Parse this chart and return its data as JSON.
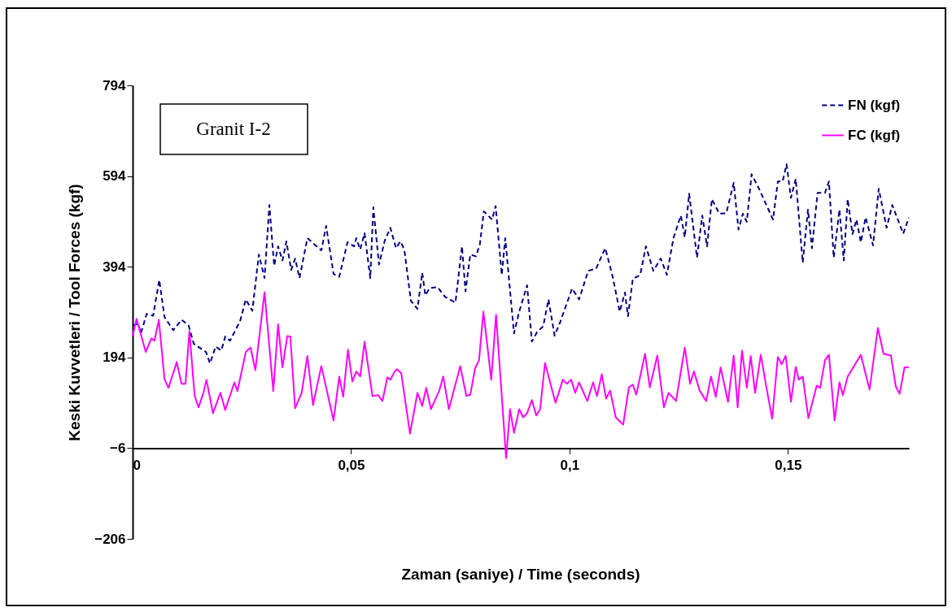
{
  "chart_data": {
    "type": "line",
    "xlabel": "Zaman (saniye) / Time (seconds)",
    "ylabel": "Keski Kuvvetleri  / Tool Forces (kgf)",
    "annotations": [
      "Granit I-2"
    ],
    "xlim": [
      0,
      0.1777
    ],
    "xticks": [
      {
        "value": 0,
        "label": "0"
      },
      {
        "value": 0.05,
        "label": "0,05"
      },
      {
        "value": 0.1,
        "label": "0,1"
      },
      {
        "value": 0.15,
        "label": "0,15"
      }
    ],
    "ylim": [
      -206,
      794
    ],
    "yticks": [
      -206,
      -6,
      194,
      394,
      594,
      794
    ],
    "grid": false,
    "legend": "top right",
    "marker": "none",
    "series": [
      {
        "name": "FN (kgf)",
        "color": "#000080",
        "line_style": "dashed",
        "x": [
          0,
          0.0013,
          0.0019,
          0.0032,
          0.0047,
          0.0061,
          0.0073,
          0.0093,
          0.0112,
          0.0128,
          0.014,
          0.0168,
          0.0177,
          0.019,
          0.0203,
          0.0212,
          0.0223,
          0.0246,
          0.0259,
          0.0274,
          0.0289,
          0.0302,
          0.0313,
          0.0324,
          0.0333,
          0.0343,
          0.0352,
          0.0363,
          0.0372,
          0.0382,
          0.04,
          0.0432,
          0.0443,
          0.046,
          0.0473,
          0.0492,
          0.0507,
          0.0512,
          0.0521,
          0.0531,
          0.0544,
          0.0551,
          0.0564,
          0.0577,
          0.059,
          0.0603,
          0.0613,
          0.0622,
          0.0637,
          0.0652,
          0.0663,
          0.067,
          0.068,
          0.0698,
          0.0715,
          0.0739,
          0.0754,
          0.0762,
          0.0773,
          0.0786,
          0.0795,
          0.0804,
          0.0823,
          0.0831,
          0.0845,
          0.0853,
          0.0873,
          0.0885,
          0.0903,
          0.0914,
          0.0926,
          0.094,
          0.0952,
          0.0966,
          0.0978,
          0.1006,
          0.1022,
          0.1043,
          0.1061,
          0.1082,
          0.1099,
          0.1115,
          0.1127,
          0.1134,
          0.1145,
          0.1162,
          0.1175,
          0.1192,
          0.1209,
          0.1223,
          0.1238,
          0.1255,
          0.1264,
          0.1274,
          0.1292,
          0.1304,
          0.1315,
          0.1326,
          0.1343,
          0.1359,
          0.1376,
          0.1387,
          0.1397,
          0.1406,
          0.1417,
          0.1434,
          0.1449,
          0.1466,
          0.1477,
          0.1488,
          0.1497,
          0.1507,
          0.1518,
          0.1534,
          0.1546,
          0.1555,
          0.1568,
          0.1585,
          0.1594,
          0.1605,
          0.1618,
          0.1628,
          0.1637,
          0.1648,
          0.1657,
          0.1667,
          0.1678,
          0.1695,
          0.1708,
          0.1726,
          0.1739,
          0.1764,
          0.1777
        ],
        "values": [
          265,
          268,
          247,
          290,
          286,
          365,
          283,
          254,
          277,
          265,
          224,
          206,
          181,
          218,
          209,
          240,
          231,
          274,
          322,
          297,
          421,
          369,
          530,
          396,
          439,
          408,
          450,
          387,
          412,
          369,
          457,
          430,
          484,
          378,
          372,
          448,
          439,
          457,
          432,
          468,
          369,
          525,
          399,
          451,
          480,
          435,
          450,
          432,
          319,
          301,
          381,
          331,
          347,
          349,
          328,
          315,
          439,
          340,
          421,
          417,
          444,
          516,
          498,
          528,
          376,
          457,
          247,
          295,
          353,
          229,
          250,
          263,
          322,
          242,
          270,
          346,
          322,
          385,
          390,
          435,
          372,
          295,
          337,
          285,
          367,
          376,
          439,
          385,
          412,
          376,
          457,
          507,
          459,
          555,
          414,
          507,
          439,
          543,
          511,
          512,
          579,
          476,
          511,
          493,
          598,
          566,
          534,
          498,
          582,
          582,
          620,
          546,
          588,
          403,
          520,
          435,
          557,
          557,
          582,
          414,
          520,
          408,
          543,
          466,
          498,
          448,
          503,
          441,
          566,
          480,
          530,
          467,
          502
        ]
      },
      {
        "name": "FC (kgf)",
        "color": "#ff00ff",
        "line_style": "solid",
        "x": [
          0,
          0.0009,
          0.003,
          0.0043,
          0.005,
          0.006,
          0.0073,
          0.0082,
          0.0101,
          0.0112,
          0.0121,
          0.013,
          0.0142,
          0.0151,
          0.0162,
          0.0169,
          0.0184,
          0.0201,
          0.0212,
          0.0233,
          0.024,
          0.0259,
          0.027,
          0.0281,
          0.0302,
          0.0322,
          0.0333,
          0.0343,
          0.0354,
          0.0361,
          0.0372,
          0.0387,
          0.04,
          0.0413,
          0.0432,
          0.046,
          0.0473,
          0.0482,
          0.0493,
          0.0503,
          0.0512,
          0.0521,
          0.0531,
          0.0549,
          0.0562,
          0.0572,
          0.0583,
          0.059,
          0.06,
          0.0605,
          0.0615,
          0.0635,
          0.0652,
          0.0663,
          0.0672,
          0.0683,
          0.0702,
          0.0711,
          0.0724,
          0.075,
          0.0764,
          0.0773,
          0.0784,
          0.0793,
          0.0803,
          0.0821,
          0.0832,
          0.0855,
          0.0864,
          0.0873,
          0.0885,
          0.0894,
          0.0903,
          0.0914,
          0.0924,
          0.0933,
          0.0944,
          0.0968,
          0.0985,
          0.0994,
          0.1004,
          0.1013,
          0.1022,
          0.1041,
          0.1054,
          0.1063,
          0.1074,
          0.1084,
          0.1093,
          0.1106,
          0.1123,
          0.1136,
          0.1145,
          0.1153,
          0.1173,
          0.1184,
          0.1201,
          0.1216,
          0.1227,
          0.1244,
          0.1264,
          0.1276,
          0.1285,
          0.1298,
          0.1313,
          0.1324,
          0.1335,
          0.1346,
          0.1363,
          0.1376,
          0.1385,
          0.1395,
          0.1406,
          0.1415,
          0.1425,
          0.1438,
          0.1451,
          0.1464,
          0.1477,
          0.1486,
          0.1495,
          0.1507,
          0.1518,
          0.1525,
          0.1534,
          0.1547,
          0.1566,
          0.1574,
          0.1585,
          0.1594,
          0.1607,
          0.1618,
          0.1626,
          0.1637,
          0.1667,
          0.1687,
          0.1706,
          0.1719,
          0.1736,
          0.1747,
          0.1756,
          0.1767,
          0.1777
        ],
        "values": [
          241,
          279,
          206,
          236,
          231,
          277,
          146,
          127,
          184,
          136,
          136,
          252,
          109,
          84,
          116,
          145,
          71,
          116,
          78,
          139,
          120,
          206,
          216,
          166,
          338,
          120,
          267,
          172,
          241,
          240,
          82,
          116,
          197,
          89,
          175,
          55,
          152,
          107,
          211,
          141,
          163,
          152,
          229,
          109,
          111,
          98,
          150,
          145,
          163,
          168,
          159,
          26,
          116,
          87,
          127,
          80,
          121,
          152,
          80,
          175,
          109,
          112,
          170,
          188,
          295,
          145,
          288,
          -28,
          80,
          28,
          80,
          62,
          71,
          100,
          66,
          80,
          182,
          94,
          145,
          136,
          145,
          116,
          139,
          98,
          139,
          109,
          157,
          103,
          121,
          62,
          46,
          128,
          134,
          112,
          202,
          128,
          198,
          84,
          116,
          98,
          216,
          136,
          163,
          121,
          98,
          152,
          107,
          172,
          96,
          198,
          84,
          209,
          127,
          197,
          116,
          200,
          127,
          59,
          195,
          179,
          198,
          96,
          173,
          145,
          152,
          60,
          132,
          127,
          188,
          200,
          55,
          139,
          111,
          152,
          200,
          123,
          259,
          202,
          198,
          130,
          114,
          172,
          172
        ]
      }
    ]
  }
}
